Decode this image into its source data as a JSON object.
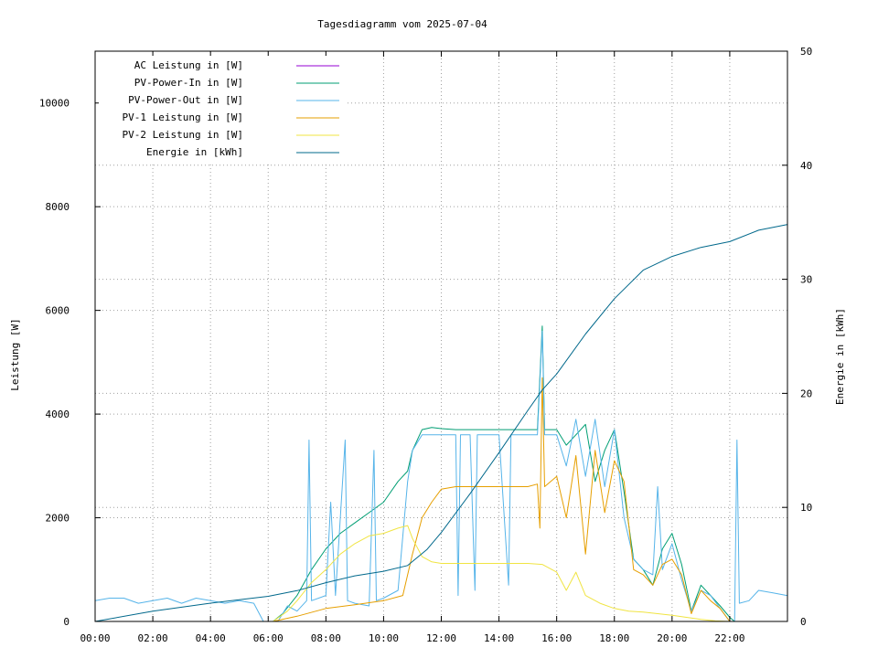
{
  "chart_data": {
    "type": "line",
    "title": "Tagesdiagramm vom 2025-07-04",
    "xlabel": "",
    "ylabel": "Leistung [W]",
    "y2label": "Energie in [kWh]",
    "xlim": [
      "00:00",
      "24:00"
    ],
    "ylim": [
      0,
      11000
    ],
    "y2lim": [
      0,
      50
    ],
    "x_ticks": [
      "00:00",
      "02:00",
      "04:00",
      "06:00",
      "08:00",
      "10:00",
      "12:00",
      "14:00",
      "16:00",
      "18:00",
      "20:00",
      "22:00"
    ],
    "y_ticks": [
      0,
      2000,
      4000,
      6000,
      8000,
      10000
    ],
    "y2_ticks": [
      0,
      10,
      20,
      30,
      40,
      50
    ],
    "grid": true,
    "legend_position": "top-left",
    "series": [
      {
        "name": "AC Leistung in [W]",
        "axis": "left",
        "color": "#9400d3",
        "points": []
      },
      {
        "name": "PV-Power-In in [W]",
        "axis": "left",
        "color": "#009e73",
        "points": [
          [
            "06:10",
            0
          ],
          [
            "06:30",
            150
          ],
          [
            "07:00",
            500
          ],
          [
            "07:30",
            1000
          ],
          [
            "08:00",
            1400
          ],
          [
            "08:30",
            1700
          ],
          [
            "09:00",
            1900
          ],
          [
            "09:30",
            2100
          ],
          [
            "10:00",
            2300
          ],
          [
            "10:30",
            2700
          ],
          [
            "10:50",
            2900
          ],
          [
            "11:00",
            3300
          ],
          [
            "11:20",
            3700
          ],
          [
            "11:40",
            3740
          ],
          [
            "12:00",
            3720
          ],
          [
            "12:30",
            3700
          ],
          [
            "13:00",
            3700
          ],
          [
            "14:00",
            3700
          ],
          [
            "15:00",
            3700
          ],
          [
            "15:20",
            3700
          ],
          [
            "15:30",
            5700
          ],
          [
            "15:35",
            3700
          ],
          [
            "16:00",
            3700
          ],
          [
            "16:20",
            3400
          ],
          [
            "16:40",
            3600
          ],
          [
            "17:00",
            3800
          ],
          [
            "17:20",
            2700
          ],
          [
            "17:40",
            3300
          ],
          [
            "18:00",
            3700
          ],
          [
            "18:20",
            2500
          ],
          [
            "18:40",
            1200
          ],
          [
            "19:00",
            1000
          ],
          [
            "19:20",
            700
          ],
          [
            "19:40",
            1400
          ],
          [
            "20:00",
            1700
          ],
          [
            "20:20",
            1100
          ],
          [
            "20:40",
            200
          ],
          [
            "21:00",
            700
          ],
          [
            "21:20",
            500
          ],
          [
            "21:40",
            300
          ],
          [
            "22:00",
            80
          ],
          [
            "22:10",
            0
          ]
        ]
      },
      {
        "name": "PV-Power-Out in [W]",
        "axis": "left",
        "color": "#56b4e9",
        "points": [
          [
            "00:00",
            400
          ],
          [
            "00:30",
            450
          ],
          [
            "01:00",
            450
          ],
          [
            "01:30",
            350
          ],
          [
            "02:00",
            400
          ],
          [
            "02:30",
            450
          ],
          [
            "03:00",
            350
          ],
          [
            "03:30",
            450
          ],
          [
            "04:00",
            400
          ],
          [
            "04:30",
            350
          ],
          [
            "05:00",
            400
          ],
          [
            "05:30",
            350
          ],
          [
            "05:50",
            0
          ],
          [
            "06:20",
            0
          ],
          [
            "06:40",
            300
          ],
          [
            "07:00",
            200
          ],
          [
            "07:20",
            400
          ],
          [
            "07:25",
            3500
          ],
          [
            "07:30",
            400
          ],
          [
            "08:00",
            500
          ],
          [
            "08:10",
            2300
          ],
          [
            "08:20",
            500
          ],
          [
            "08:40",
            3500
          ],
          [
            "08:45",
            400
          ],
          [
            "09:00",
            350
          ],
          [
            "09:30",
            300
          ],
          [
            "09:40",
            3300
          ],
          [
            "09:45",
            400
          ],
          [
            "10:00",
            450
          ],
          [
            "10:30",
            600
          ],
          [
            "10:50",
            2700
          ],
          [
            "11:00",
            3300
          ],
          [
            "11:20",
            3600
          ],
          [
            "12:00",
            3600
          ],
          [
            "12:30",
            3600
          ],
          [
            "12:35",
            500
          ],
          [
            "12:40",
            3600
          ],
          [
            "13:00",
            3600
          ],
          [
            "13:10",
            600
          ],
          [
            "13:15",
            3600
          ],
          [
            "14:00",
            3600
          ],
          [
            "14:20",
            700
          ],
          [
            "14:25",
            3600
          ],
          [
            "15:00",
            3600
          ],
          [
            "15:20",
            3600
          ],
          [
            "15:30",
            5600
          ],
          [
            "15:35",
            3600
          ],
          [
            "16:00",
            3600
          ],
          [
            "16:20",
            3000
          ],
          [
            "16:40",
            3900
          ],
          [
            "17:00",
            2800
          ],
          [
            "17:20",
            3900
          ],
          [
            "17:40",
            2600
          ],
          [
            "18:00",
            3700
          ],
          [
            "18:20",
            2000
          ],
          [
            "18:40",
            1200
          ],
          [
            "19:00",
            1000
          ],
          [
            "19:20",
            900
          ],
          [
            "19:30",
            2600
          ],
          [
            "19:40",
            1000
          ],
          [
            "20:00",
            1500
          ],
          [
            "20:20",
            800
          ],
          [
            "20:40",
            200
          ],
          [
            "21:00",
            600
          ],
          [
            "21:20",
            500
          ],
          [
            "21:40",
            250
          ],
          [
            "22:00",
            0
          ],
          [
            "22:10",
            0
          ],
          [
            "22:15",
            3500
          ],
          [
            "22:20",
            350
          ],
          [
            "22:40",
            400
          ],
          [
            "23:00",
            600
          ],
          [
            "23:30",
            550
          ],
          [
            "23:59",
            500
          ]
        ]
      },
      {
        "name": "PV-1 Leistung in [W]",
        "axis": "left",
        "color": "#e69f00",
        "points": [
          [
            "06:10",
            0
          ],
          [
            "07:00",
            100
          ],
          [
            "08:00",
            250
          ],
          [
            "09:00",
            320
          ],
          [
            "10:00",
            400
          ],
          [
            "10:40",
            500
          ],
          [
            "11:00",
            1300
          ],
          [
            "11:20",
            2000
          ],
          [
            "11:40",
            2300
          ],
          [
            "12:00",
            2550
          ],
          [
            "12:30",
            2600
          ],
          [
            "13:00",
            2600
          ],
          [
            "13:30",
            2600
          ],
          [
            "14:00",
            2600
          ],
          [
            "14:30",
            2600
          ],
          [
            "15:00",
            2600
          ],
          [
            "15:20",
            2650
          ],
          [
            "15:25",
            1800
          ],
          [
            "15:30",
            4700
          ],
          [
            "15:35",
            2600
          ],
          [
            "16:00",
            2800
          ],
          [
            "16:20",
            2000
          ],
          [
            "16:40",
            3200
          ],
          [
            "17:00",
            1300
          ],
          [
            "17:20",
            3300
          ],
          [
            "17:40",
            2100
          ],
          [
            "18:00",
            3100
          ],
          [
            "18:20",
            2700
          ],
          [
            "18:40",
            1000
          ],
          [
            "19:00",
            900
          ],
          [
            "19:20",
            700
          ],
          [
            "19:40",
            1100
          ],
          [
            "20:00",
            1200
          ],
          [
            "20:20",
            900
          ],
          [
            "20:40",
            150
          ],
          [
            "21:00",
            600
          ],
          [
            "21:20",
            400
          ],
          [
            "21:40",
            250
          ],
          [
            "22:00",
            0
          ]
        ]
      },
      {
        "name": "PV-2 Leistung in [W]",
        "axis": "left",
        "color": "#f0e442",
        "points": [
          [
            "06:10",
            0
          ],
          [
            "06:40",
            200
          ],
          [
            "07:00",
            400
          ],
          [
            "07:30",
            750
          ],
          [
            "08:00",
            1000
          ],
          [
            "08:30",
            1300
          ],
          [
            "09:00",
            1500
          ],
          [
            "09:30",
            1650
          ],
          [
            "10:00",
            1700
          ],
          [
            "10:30",
            1800
          ],
          [
            "10:50",
            1850
          ],
          [
            "11:00",
            1600
          ],
          [
            "11:20",
            1250
          ],
          [
            "11:40",
            1150
          ],
          [
            "12:00",
            1120
          ],
          [
            "13:00",
            1120
          ],
          [
            "14:00",
            1120
          ],
          [
            "15:00",
            1120
          ],
          [
            "15:30",
            1100
          ],
          [
            "16:00",
            950
          ],
          [
            "16:20",
            600
          ],
          [
            "16:40",
            950
          ],
          [
            "17:00",
            500
          ],
          [
            "17:30",
            350
          ],
          [
            "18:00",
            250
          ],
          [
            "18:30",
            200
          ],
          [
            "19:00",
            180
          ],
          [
            "19:30",
            150
          ],
          [
            "20:00",
            120
          ],
          [
            "20:30",
            80
          ],
          [
            "21:00",
            40
          ],
          [
            "21:30",
            10
          ],
          [
            "22:00",
            0
          ]
        ]
      },
      {
        "name": "Energie in [kWh]",
        "axis": "right",
        "color": "#00688b",
        "points": [
          [
            "00:00",
            0
          ],
          [
            "02:00",
            0.9
          ],
          [
            "04:00",
            1.6
          ],
          [
            "06:00",
            2.2
          ],
          [
            "07:00",
            2.7
          ],
          [
            "08:00",
            3.4
          ],
          [
            "09:00",
            4.0
          ],
          [
            "10:00",
            4.4
          ],
          [
            "10:50",
            4.9
          ],
          [
            "11:30",
            6.3
          ],
          [
            "12:00",
            7.8
          ],
          [
            "13:00",
            11.2
          ],
          [
            "14:00",
            14.8
          ],
          [
            "15:00",
            18.5
          ],
          [
            "15:30",
            20.3
          ],
          [
            "16:00",
            21.7
          ],
          [
            "17:00",
            25.2
          ],
          [
            "18:00",
            28.3
          ],
          [
            "19:00",
            30.8
          ],
          [
            "20:00",
            32.0
          ],
          [
            "21:00",
            32.8
          ],
          [
            "22:00",
            33.3
          ],
          [
            "23:00",
            34.3
          ],
          [
            "23:59",
            34.8
          ]
        ]
      }
    ]
  }
}
